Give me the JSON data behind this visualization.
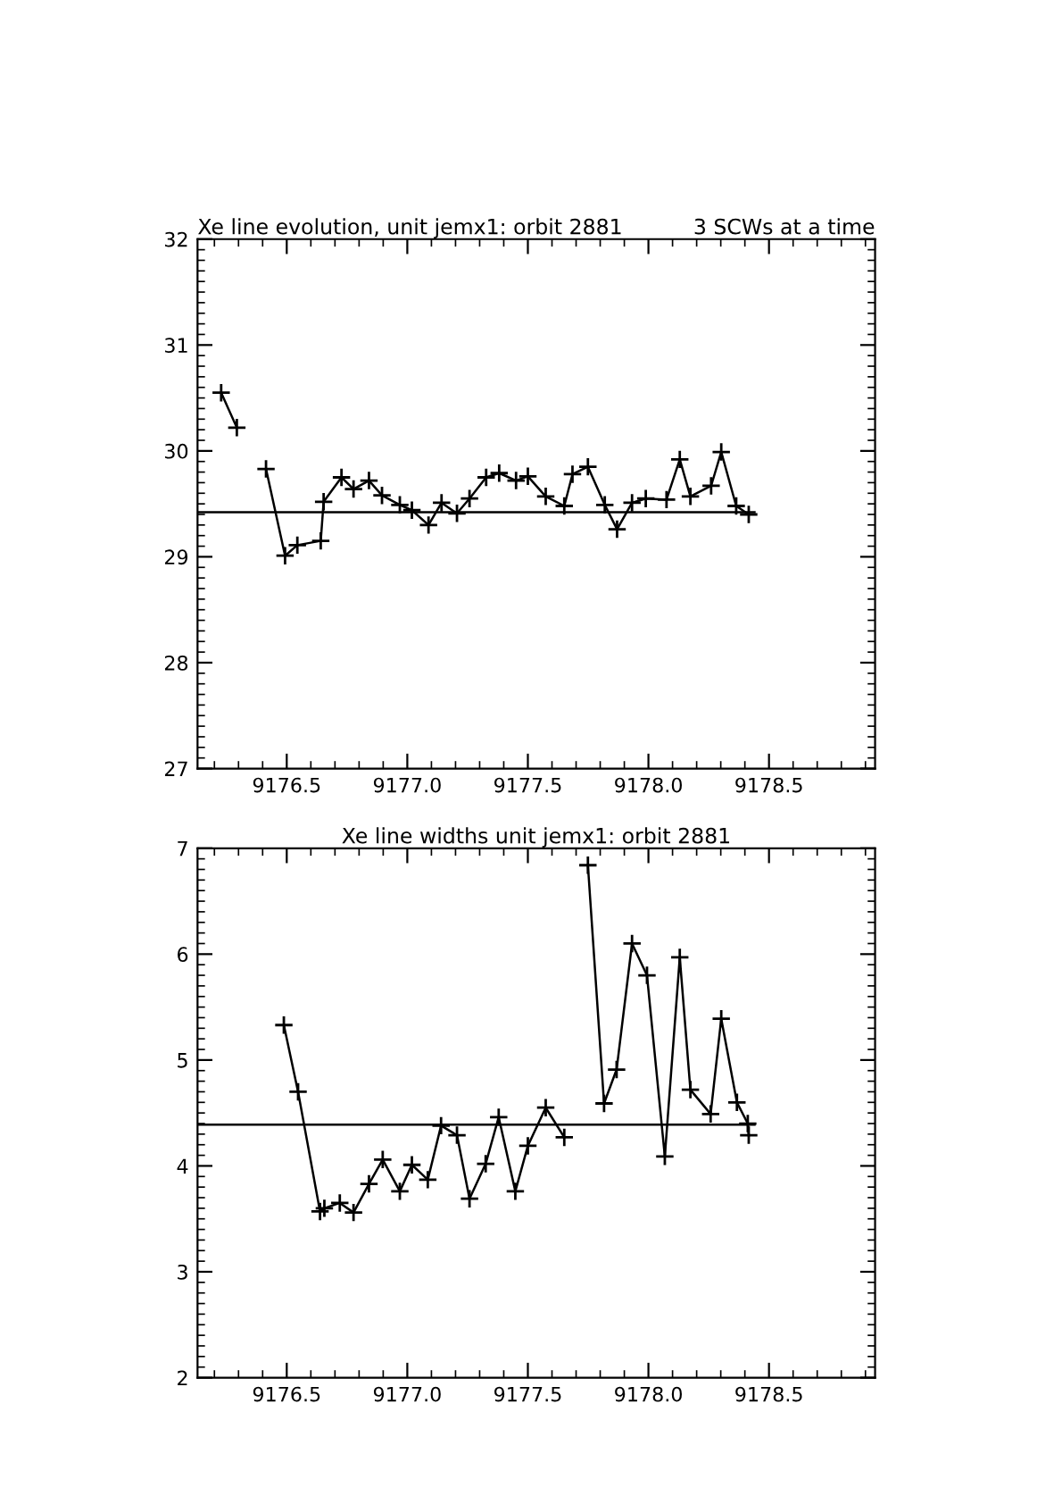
{
  "chart_data": [
    {
      "type": "line",
      "title": "Xe line evolution, unit jemx1: orbit 2881",
      "annotations": [
        "3 SCWs at a time"
      ],
      "xlim": [
        9176.13,
        9178.94
      ],
      "xticks": [
        {
          "value": 9176.5,
          "label": "9176.5"
        },
        {
          "value": 9177.0,
          "label": "9177.0"
        },
        {
          "value": 9177.5,
          "label": "9177.5"
        },
        {
          "value": 9178.0,
          "label": "9178.0"
        },
        {
          "value": 9178.5,
          "label": "9178.5"
        }
      ],
      "ylim": [
        27,
        32
      ],
      "yticks": [
        27,
        28,
        29,
        30,
        31,
        32
      ],
      "grid": false,
      "legend": false,
      "series": [
        {
          "color": "#000000",
          "marker": "cross",
          "x": [
            9176.228,
            9176.293,
            9176.35,
            9176.414,
            9176.493,
            9176.544,
            9176.641,
            9176.653,
            9176.727,
            9176.777,
            9176.841,
            9176.895,
            9176.969,
            9177.019,
            9177.088,
            9177.142,
            9177.206,
            9177.258,
            9177.327,
            9177.381,
            9177.451,
            9177.5,
            9177.574,
            9177.651,
            9177.685,
            9177.749,
            9177.819,
            9177.87,
            9177.932,
            9177.989,
            9178.075,
            9178.13,
            9178.174,
            9178.26,
            9178.302,
            9178.364,
            9178.416
          ],
          "values": [
            30.55,
            30.22,
            null,
            29.83,
            29.01,
            29.11,
            29.15,
            29.52,
            29.75,
            29.64,
            29.72,
            29.58,
            29.49,
            29.44,
            29.3,
            29.51,
            29.41,
            29.55,
            29.75,
            29.79,
            29.72,
            29.76,
            29.57,
            29.48,
            29.78,
            29.85,
            29.49,
            29.26,
            29.51,
            29.55,
            29.54,
            29.92,
            29.57,
            29.67,
            29.99,
            29.48,
            29.4
          ]
        },
        {
          "color": "#000000",
          "marker": "none",
          "x": [
            9176.13,
            9178.44
          ],
          "values": [
            29.42,
            29.42
          ]
        }
      ]
    },
    {
      "type": "line",
      "title": "Xe line widths unit jemx1: orbit 2881",
      "xlim": [
        9176.13,
        9178.94
      ],
      "xticks": [
        {
          "value": 9176.5,
          "label": "9176.5"
        },
        {
          "value": 9177.0,
          "label": "9177.0"
        },
        {
          "value": 9177.5,
          "label": "9177.5"
        },
        {
          "value": 9178.0,
          "label": "9178.0"
        },
        {
          "value": 9178.5,
          "label": "9178.5"
        }
      ],
      "ylim": [
        2,
        7
      ],
      "yticks": [
        2,
        3,
        4,
        5,
        6,
        7
      ],
      "grid": false,
      "legend": false,
      "series": [
        {
          "color": "#000000",
          "marker": "cross",
          "x": [
            9176.488,
            9176.547,
            9176.638,
            9176.656,
            9176.72,
            9176.777,
            9176.841,
            9176.898,
            9176.969,
            9177.019,
            9177.085,
            9177.14,
            9177.206,
            9177.258,
            9177.325,
            9177.379,
            9177.448,
            9177.5,
            9177.574,
            9177.651,
            9177.7,
            9177.749,
            9177.816,
            9177.868,
            9177.932,
            9177.994,
            9178.068,
            9178.13,
            9178.174,
            9178.258,
            9178.302,
            9178.367,
            9178.412,
            9178.416
          ],
          "values": [
            5.33,
            4.7,
            3.57,
            3.6,
            3.65,
            3.56,
            3.83,
            4.06,
            3.76,
            4.01,
            3.87,
            4.38,
            4.29,
            3.69,
            4.02,
            4.46,
            3.76,
            4.19,
            4.55,
            4.27,
            null,
            6.84,
            4.59,
            4.91,
            6.1,
            5.8,
            4.09,
            5.97,
            4.72,
            4.49,
            5.39,
            4.6,
            4.4,
            4.29
          ]
        },
        {
          "color": "#000000",
          "marker": "none",
          "x": [
            9176.13,
            9178.44
          ],
          "values": [
            4.39,
            4.39
          ]
        }
      ]
    }
  ]
}
